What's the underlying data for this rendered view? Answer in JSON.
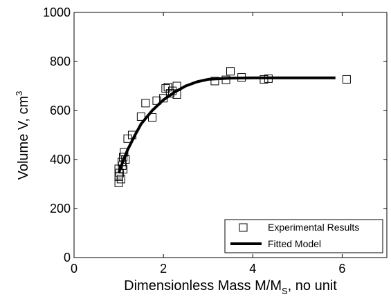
{
  "chart_data": {
    "type": "scatter",
    "xlabel": {
      "main": "Dimensionless Mass M/M",
      "sub": "S",
      "suffix": ", no unit"
    },
    "ylabel": {
      "main": "Volume V, cm",
      "sup": "3"
    },
    "xlim": [
      0,
      7
    ],
    "ylim": [
      0,
      1000
    ],
    "xticks": [
      0,
      2,
      4,
      6
    ],
    "yticks": [
      0,
      200,
      400,
      600,
      800,
      1000
    ],
    "xtick_labels": [
      "0",
      "2",
      "4",
      "6"
    ],
    "ytick_labels": [
      "0",
      "200",
      "400",
      "600",
      "800",
      "1000"
    ],
    "grid": false,
    "legend_position": "bottom-right",
    "series": [
      {
        "name": "Experimental Results",
        "marker": "square-open",
        "color": "#000000",
        "points": [
          {
            "x": 1.0,
            "y": 305
          },
          {
            "x": 1.0,
            "y": 330
          },
          {
            "x": 1.02,
            "y": 345
          },
          {
            "x": 1.0,
            "y": 362
          },
          {
            "x": 1.05,
            "y": 320
          },
          {
            "x": 1.07,
            "y": 390
          },
          {
            "x": 1.08,
            "y": 375
          },
          {
            "x": 1.1,
            "y": 360
          },
          {
            "x": 1.1,
            "y": 410
          },
          {
            "x": 1.12,
            "y": 430
          },
          {
            "x": 1.15,
            "y": 400
          },
          {
            "x": 1.2,
            "y": 485
          },
          {
            "x": 1.3,
            "y": 500
          },
          {
            "x": 1.5,
            "y": 575
          },
          {
            "x": 1.6,
            "y": 630
          },
          {
            "x": 1.75,
            "y": 572
          },
          {
            "x": 1.85,
            "y": 640
          },
          {
            "x": 2.0,
            "y": 650
          },
          {
            "x": 2.05,
            "y": 690
          },
          {
            "x": 2.1,
            "y": 695
          },
          {
            "x": 2.15,
            "y": 670
          },
          {
            "x": 2.2,
            "y": 680
          },
          {
            "x": 2.3,
            "y": 700
          },
          {
            "x": 2.3,
            "y": 665
          },
          {
            "x": 3.15,
            "y": 720
          },
          {
            "x": 3.4,
            "y": 725
          },
          {
            "x": 3.5,
            "y": 760
          },
          {
            "x": 3.75,
            "y": 735
          },
          {
            "x": 4.25,
            "y": 727
          },
          {
            "x": 4.35,
            "y": 730
          },
          {
            "x": 6.1,
            "y": 727
          }
        ]
      },
      {
        "name": "Fitted Model",
        "line": "solid-thick",
        "color": "#000000",
        "points": [
          {
            "x": 1.0,
            "y": 345
          },
          {
            "x": 1.1,
            "y": 395
          },
          {
            "x": 1.2,
            "y": 440
          },
          {
            "x": 1.35,
            "y": 495
          },
          {
            "x": 1.5,
            "y": 545
          },
          {
            "x": 1.75,
            "y": 600
          },
          {
            "x": 2.0,
            "y": 643
          },
          {
            "x": 2.25,
            "y": 675
          },
          {
            "x": 2.5,
            "y": 700
          },
          {
            "x": 2.75,
            "y": 717
          },
          {
            "x": 3.0,
            "y": 727
          },
          {
            "x": 3.5,
            "y": 732
          },
          {
            "x": 4.0,
            "y": 733
          },
          {
            "x": 5.0,
            "y": 733
          },
          {
            "x": 5.85,
            "y": 733
          }
        ]
      }
    ]
  }
}
